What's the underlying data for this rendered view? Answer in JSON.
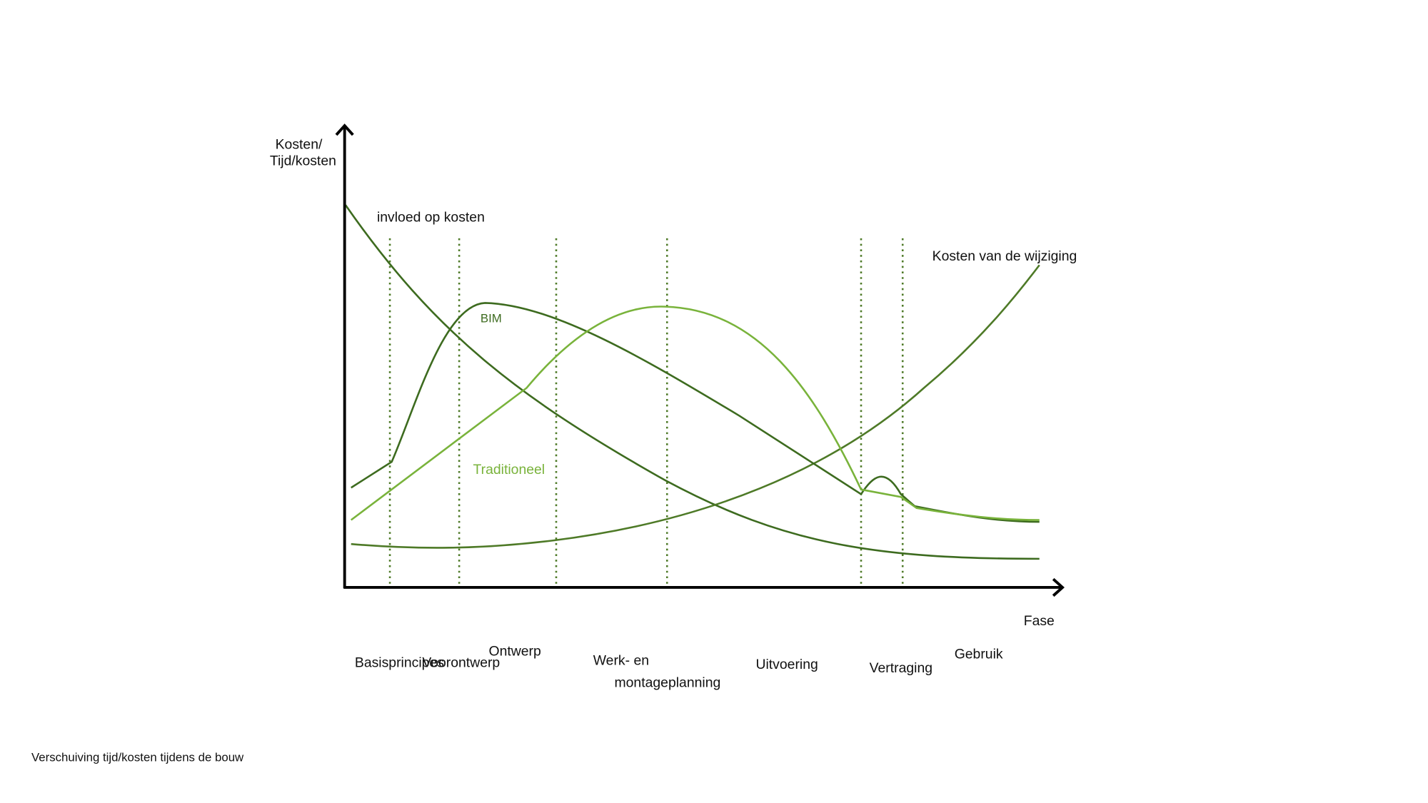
{
  "axis": {
    "y_label_line1": "Kosten/",
    "y_label_line2": "Tijd/kosten",
    "x_label": "Fase"
  },
  "curves": {
    "influence": "invloed op kosten",
    "change_cost": "Kosten van de wijziging",
    "bim": "BIM",
    "traditional": "Traditioneel"
  },
  "phases": [
    "Basisprincipes",
    "Voorontwerp",
    "Ontwerp",
    "Werk- en",
    "montageplanning",
    "Uitvoering",
    "Vertraging",
    "Gebruik"
  ],
  "caption": "Verschuiving tijd/kosten tijdens de bouw"
}
